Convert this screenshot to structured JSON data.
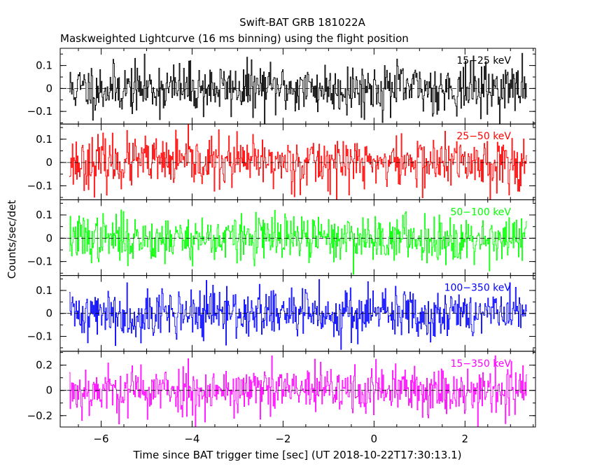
{
  "chart_data": {
    "type": "line",
    "title": "Swift-BAT GRB 181022A",
    "subtitle": "Maskweighted Lightcurve (16 ms binning) using the flight position",
    "xlabel": "Time since BAT trigger time [sec] (UT 2018-10-22T17:30:13.1)",
    "ylabel": "Counts/sec/det",
    "xlim": [
      -6.9,
      3.55
    ],
    "data_x_range": [
      -6.7,
      3.35
    ],
    "bin_width_s": 0.016,
    "x_ticks": [
      -6,
      -4,
      -2,
      0,
      2
    ],
    "x_tick_labels": [
      "−6",
      "−4",
      "−2",
      "0",
      "2"
    ],
    "grid": false,
    "zero_line": "dashed",
    "panels": [
      {
        "name": "15−25 keV",
        "color": "#000000",
        "ylim": [
          -0.155,
          0.175
        ],
        "y_ticks": [
          -0.1,
          0,
          0.1
        ],
        "y_tick_labels": [
          "−0.1",
          "0",
          "0.1"
        ],
        "noise_std": 0.055,
        "seed": 11
      },
      {
        "name": "25−50 keV",
        "color": "#ff0000",
        "ylim": [
          -0.16,
          0.165
        ],
        "y_ticks": [
          -0.1,
          0,
          0.1
        ],
        "y_tick_labels": [
          "−0.1",
          "0",
          "0.1"
        ],
        "noise_std": 0.055,
        "seed": 23
      },
      {
        "name": "50−100 keV",
        "color": "#00ff00",
        "ylim": [
          -0.16,
          0.165
        ],
        "y_ticks": [
          -0.1,
          0,
          0.1
        ],
        "y_tick_labels": [
          "−0.1",
          "0",
          "0.1"
        ],
        "noise_std": 0.05,
        "seed": 37
      },
      {
        "name": "100−350 keV",
        "color": "#0000ff",
        "ylim": [
          -0.165,
          0.165
        ],
        "y_ticks": [
          -0.1,
          0,
          0.1
        ],
        "y_tick_labels": [
          "−0.1",
          "0",
          "0.1"
        ],
        "noise_std": 0.055,
        "seed": 41
      },
      {
        "name": "15−350 keV",
        "color": "#ff00ff",
        "ylim": [
          -0.29,
          0.31
        ],
        "y_ticks": [
          -0.2,
          0,
          0.2
        ],
        "y_tick_labels": [
          "−0.2",
          "0",
          "0.2"
        ],
        "noise_std": 0.1,
        "seed": 53
      }
    ]
  }
}
